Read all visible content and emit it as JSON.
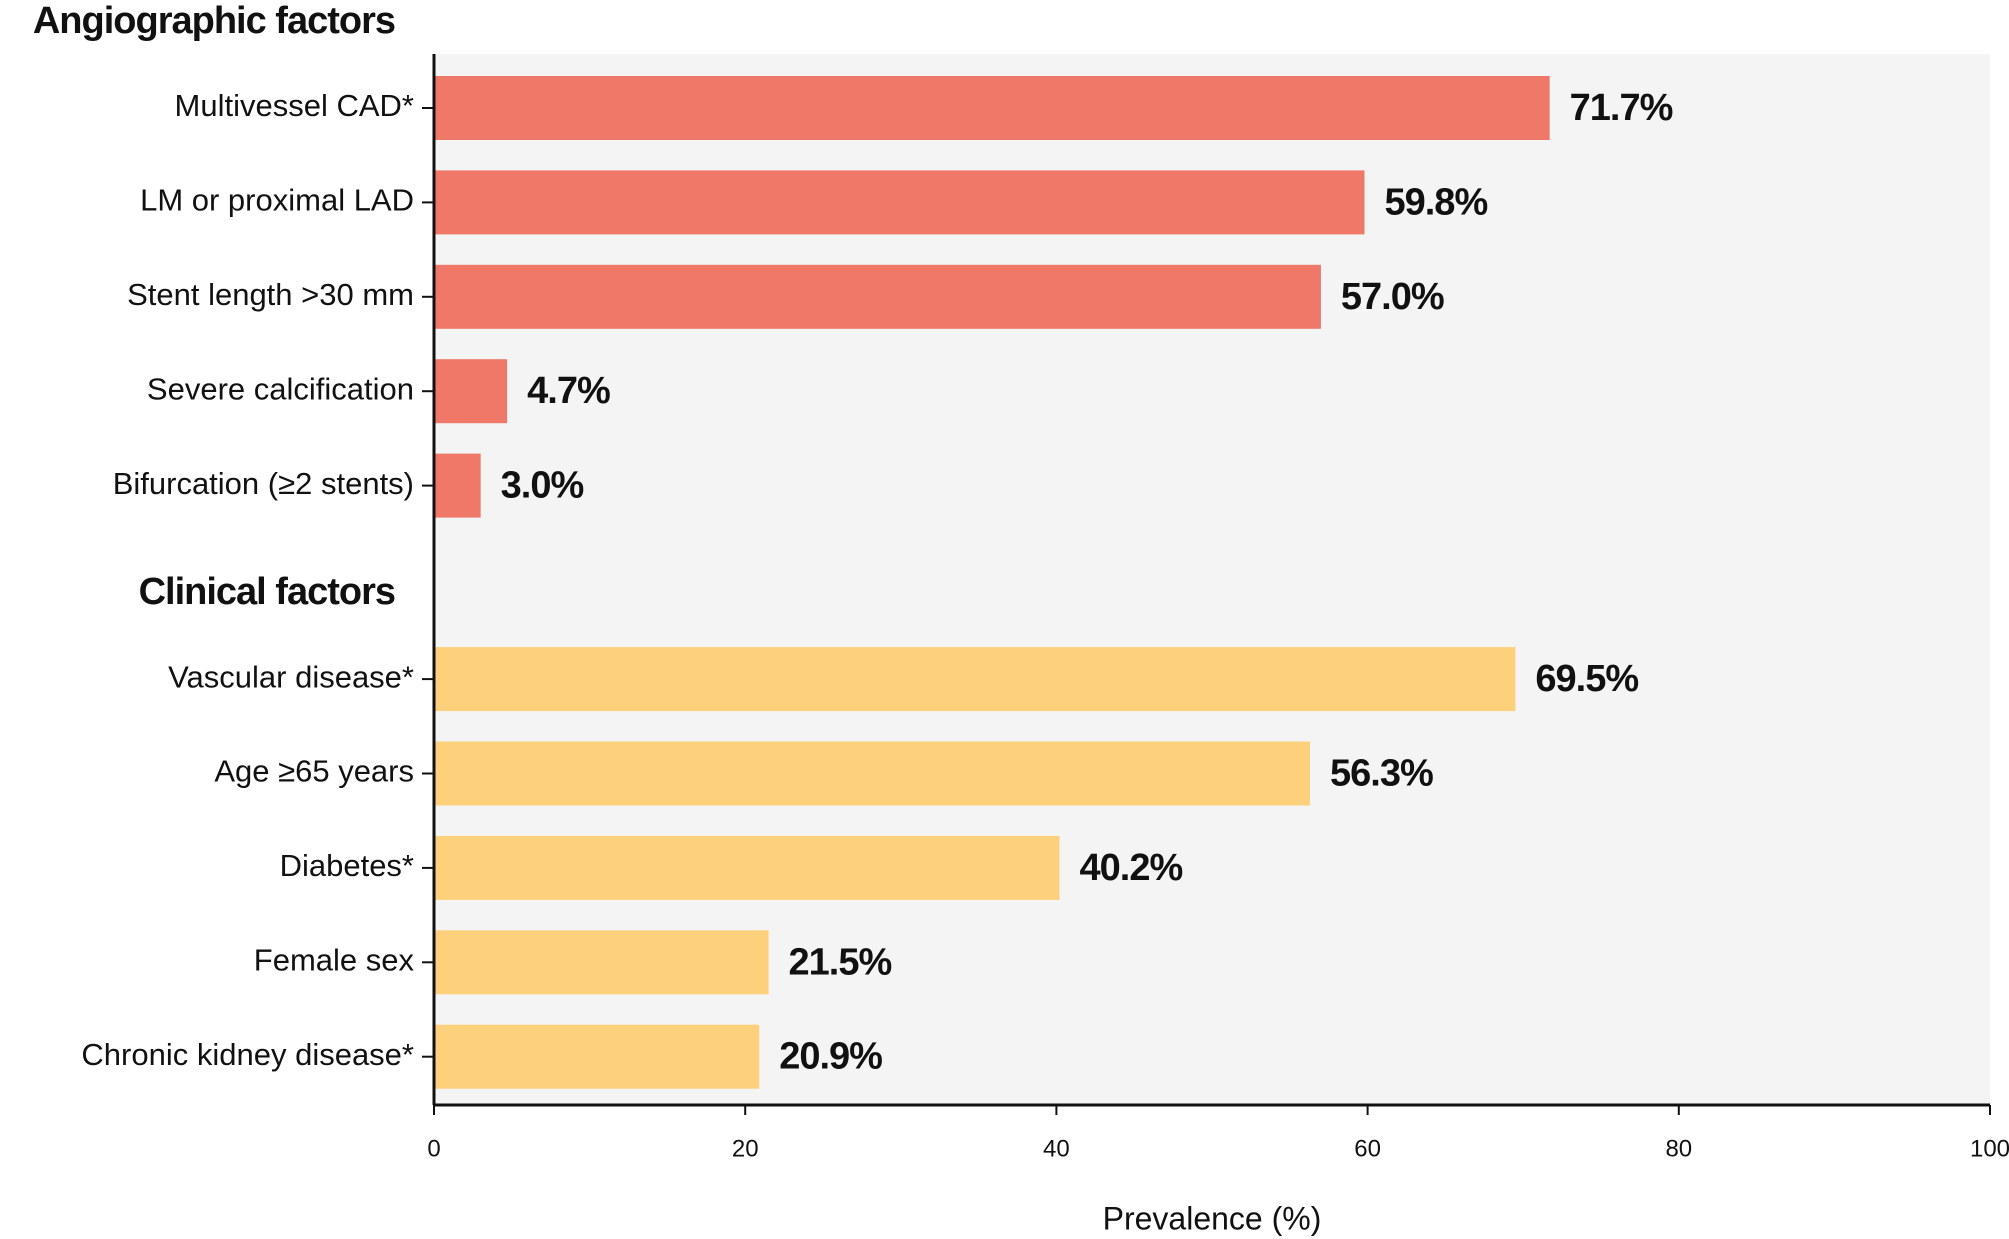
{
  "chart_data": {
    "type": "bar",
    "orientation": "horizontal",
    "xlabel": "Prevalence (%)",
    "xlim": [
      0,
      100
    ],
    "xticks": [
      0,
      20,
      40,
      60,
      80,
      100
    ],
    "groups": [
      {
        "title": "Angiographic factors",
        "color": "#ef7868",
        "categories": [
          "Multivessel CAD*",
          "LM or proximal LAD",
          "Stent length >30 mm",
          "Severe calcification",
          "Bifurcation (≥2 stents)"
        ],
        "values": [
          71.7,
          59.8,
          57.0,
          4.7,
          3.0
        ],
        "value_labels": [
          "71.7%",
          "59.8%",
          "57.0%",
          "4.7%",
          "3.0%"
        ]
      },
      {
        "title": "Clinical factors",
        "color": "#fdd07c",
        "categories": [
          "Vascular disease*",
          "Age ≥65 years",
          "Diabetes*",
          "Female sex",
          "Chronic kidney disease*"
        ],
        "values": [
          69.5,
          56.3,
          40.2,
          21.5,
          20.9
        ],
        "value_labels": [
          "69.5%",
          "56.3%",
          "40.2%",
          "21.5%",
          "20.9%"
        ]
      }
    ]
  }
}
